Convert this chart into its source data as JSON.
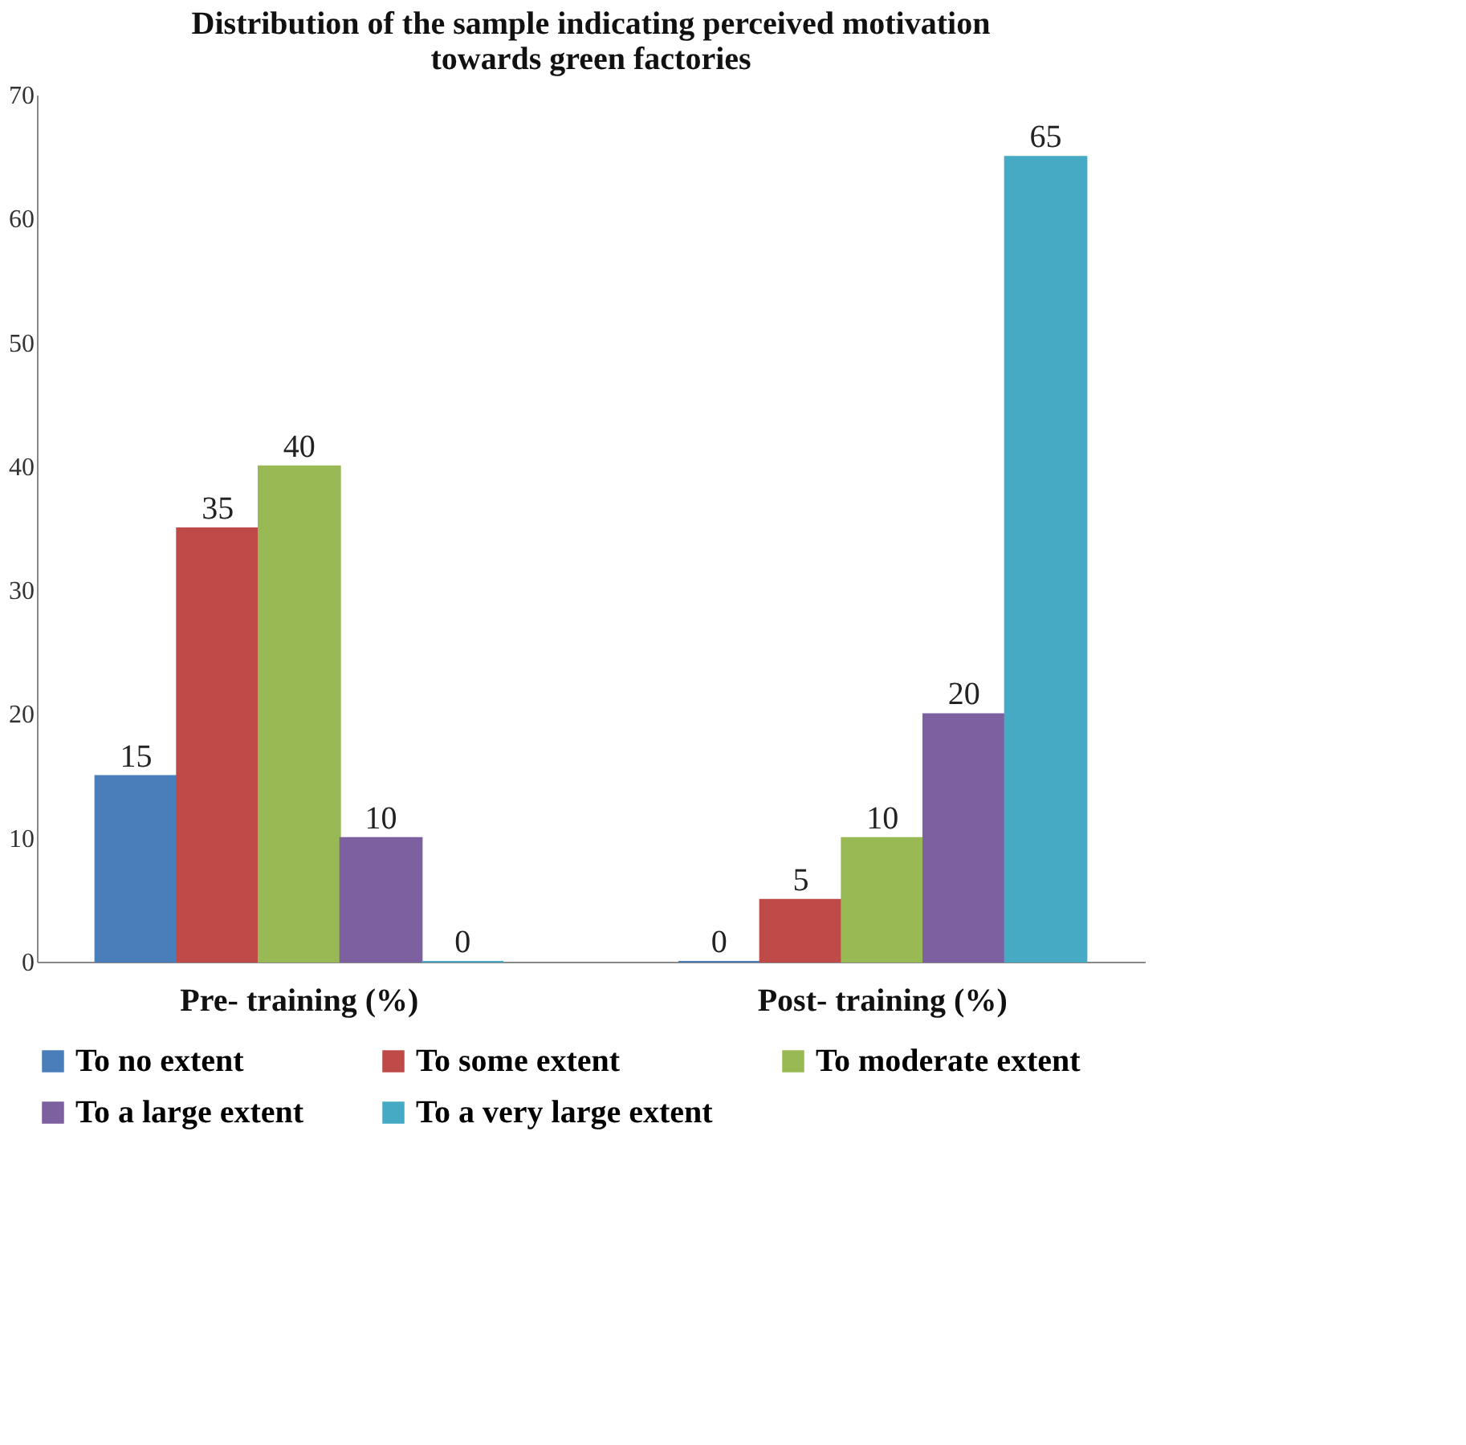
{
  "chart_data": {
    "type": "bar",
    "title": [
      "Distribution of the sample indicating perceived motivation",
      "towards green factories"
    ],
    "categories": [
      "Pre- training  (%)",
      "Post- training  (%)"
    ],
    "series": [
      {
        "name": "To no extent",
        "color": "#4a7ebb",
        "values": [
          15,
          0
        ]
      },
      {
        "name": "To some extent",
        "color": "#be4b48",
        "values": [
          35,
          5
        ]
      },
      {
        "name": "To moderate extent",
        "color": "#98b954",
        "values": [
          40,
          10
        ]
      },
      {
        "name": "To a  large extent",
        "color": "#7d60a0",
        "values": [
          10,
          20
        ]
      },
      {
        "name": "To a very large extent",
        "color": "#46aac5",
        "values": [
          0,
          65
        ]
      }
    ],
    "ylim": [
      0,
      70
    ],
    "yticks": [
      0,
      10,
      20,
      30,
      40,
      50,
      60,
      70
    ],
    "grid": false,
    "legend": "bottom",
    "data_labels": true
  }
}
